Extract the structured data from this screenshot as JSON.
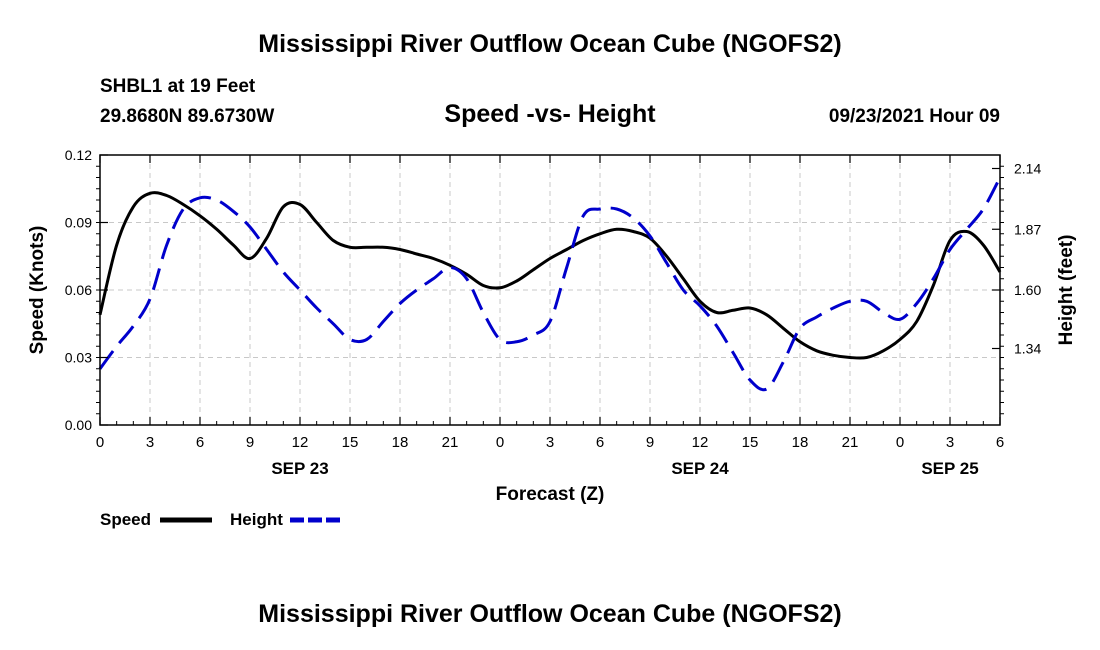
{
  "page": {
    "title_top": "Mississippi River Outflow Ocean Cube (NGOFS2)",
    "title_bottom": "Mississippi River Outflow Ocean Cube (NGOFS2)",
    "station": "SHBL1 at 19 Feet",
    "coords": "29.8680N  89.6730W",
    "timestamp": "09/23/2021 Hour 09"
  },
  "chart_data": {
    "type": "line",
    "title": "Speed -vs- Height",
    "xlabel": "Forecast (Z)",
    "ylabel_left": "Speed (Knots)",
    "ylabel_right": "Height (feet)",
    "xlim": [
      0,
      54
    ],
    "ylim_left": [
      0,
      0.12
    ],
    "ylim_right": [
      1.0,
      2.2
    ],
    "grid": true,
    "x_ticks": [
      {
        "x": 0,
        "label": "0"
      },
      {
        "x": 3,
        "label": "3"
      },
      {
        "x": 6,
        "label": "6"
      },
      {
        "x": 9,
        "label": "9"
      },
      {
        "x": 12,
        "label": "12"
      },
      {
        "x": 15,
        "label": "15"
      },
      {
        "x": 18,
        "label": "18"
      },
      {
        "x": 21,
        "label": "21"
      },
      {
        "x": 24,
        "label": "0"
      },
      {
        "x": 27,
        "label": "3"
      },
      {
        "x": 30,
        "label": "6"
      },
      {
        "x": 33,
        "label": "9"
      },
      {
        "x": 36,
        "label": "12"
      },
      {
        "x": 39,
        "label": "15"
      },
      {
        "x": 42,
        "label": "18"
      },
      {
        "x": 45,
        "label": "21"
      },
      {
        "x": 48,
        "label": "0"
      },
      {
        "x": 51,
        "label": "3"
      },
      {
        "x": 54,
        "label": "6"
      }
    ],
    "date_labels": [
      {
        "x": 12,
        "label": "SEP 23"
      },
      {
        "x": 36,
        "label": "SEP 24"
      },
      {
        "x": 51,
        "label": "SEP 25"
      }
    ],
    "left_ticks": [
      {
        "value": 0,
        "label": "0.00"
      },
      {
        "value": 0.03,
        "label": "0.03"
      },
      {
        "value": 0.06,
        "label": "0.06"
      },
      {
        "value": 0.09,
        "label": "0.09"
      },
      {
        "value": 0.12,
        "label": "0.12"
      }
    ],
    "right_ticks": [
      {
        "value": 1.34,
        "label": "1.34"
      },
      {
        "value": 1.6,
        "label": "1.60"
      },
      {
        "value": 1.87,
        "label": "1.87"
      },
      {
        "value": 2.14,
        "label": "2.14"
      }
    ],
    "series": [
      {
        "name": "Speed",
        "axis": "left",
        "color": "#000000",
        "dash": "solid",
        "x": [
          0,
          1,
          2,
          3,
          4,
          5,
          6,
          7,
          8,
          9,
          10,
          11,
          12,
          13,
          14,
          15,
          16,
          17,
          18,
          19,
          20,
          21,
          22,
          23,
          24,
          25,
          26,
          27,
          28,
          29,
          30,
          31,
          32,
          33,
          34,
          35,
          36,
          37,
          38,
          39,
          40,
          41,
          42,
          43,
          44,
          45,
          46,
          47,
          48,
          49,
          50,
          51,
          52,
          53,
          54
        ],
        "values": [
          0.049,
          0.08,
          0.097,
          0.103,
          0.102,
          0.098,
          0.093,
          0.087,
          0.08,
          0.074,
          0.083,
          0.097,
          0.098,
          0.09,
          0.082,
          0.079,
          0.079,
          0.079,
          0.078,
          0.076,
          0.074,
          0.071,
          0.067,
          0.062,
          0.061,
          0.064,
          0.069,
          0.074,
          0.078,
          0.082,
          0.085,
          0.087,
          0.086,
          0.083,
          0.075,
          0.065,
          0.055,
          0.05,
          0.051,
          0.052,
          0.049,
          0.043,
          0.037,
          0.033,
          0.031,
          0.03,
          0.03,
          0.033,
          0.038,
          0.046,
          0.062,
          0.082,
          0.086,
          0.08,
          0.068
        ]
      },
      {
        "name": "Height",
        "axis": "right",
        "color": "#0000cc",
        "dash": "dashed",
        "x": [
          0,
          1,
          2,
          3,
          4,
          5,
          6,
          7,
          8,
          9,
          10,
          11,
          12,
          13,
          14,
          15,
          16,
          17,
          18,
          19,
          20,
          21,
          22,
          23,
          24,
          25,
          26,
          27,
          28,
          29,
          30,
          31,
          32,
          33,
          34,
          35,
          36,
          37,
          38,
          39,
          40,
          41,
          42,
          43,
          44,
          45,
          46,
          47,
          48,
          49,
          50,
          51,
          52,
          53,
          54
        ],
        "values": [
          1.25,
          1.35,
          1.44,
          1.56,
          1.8,
          1.96,
          2.01,
          2.0,
          1.95,
          1.88,
          1.78,
          1.68,
          1.6,
          1.52,
          1.45,
          1.38,
          1.38,
          1.46,
          1.54,
          1.6,
          1.65,
          1.7,
          1.65,
          1.5,
          1.38,
          1.37,
          1.4,
          1.46,
          1.7,
          1.93,
          1.96,
          1.96,
          1.92,
          1.84,
          1.72,
          1.6,
          1.53,
          1.44,
          1.32,
          1.2,
          1.16,
          1.28,
          1.43,
          1.48,
          1.52,
          1.55,
          1.55,
          1.5,
          1.47,
          1.54,
          1.65,
          1.78,
          1.87,
          1.96,
          2.1
        ]
      }
    ],
    "legend": [
      {
        "label": "Speed",
        "color": "#000000",
        "dash": "solid"
      },
      {
        "label": "Height",
        "color": "#0000cc",
        "dash": "dashed"
      }
    ]
  }
}
